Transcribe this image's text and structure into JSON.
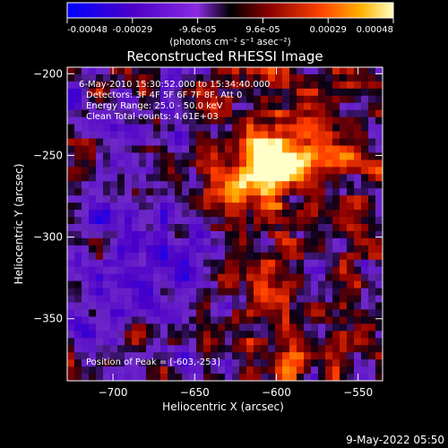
{
  "colorbar": {
    "tick_labels": [
      "-0.00048",
      "-0.00029",
      "-9.6e-05",
      "9.6e-05",
      "0.00029",
      "0.00048"
    ],
    "range": [
      -0.00048,
      0.00048
    ],
    "units_label": "(photons cm⁻² s⁻¹ asec⁻²)",
    "colors": [
      "#0000ff",
      "#5a00b0",
      "#8a2be2",
      "#000000",
      "#8b0000",
      "#ff4500",
      "#ffb000",
      "#ffffb0"
    ]
  },
  "chart_data": {
    "type": "heatmap",
    "title": "Reconstructed RHESSI Image",
    "xlabel": "Heliocentric X (arcsec)",
    "ylabel": "Heliocentric Y (arcsec)",
    "xlim": [
      -728,
      -535
    ],
    "ylim": [
      -388,
      -196
    ],
    "x_ticks": [
      -700,
      -650,
      -600,
      -550
    ],
    "y_ticks": [
      -200,
      -250,
      -300,
      -350
    ],
    "x_tick_labels": [
      "−700",
      "−650",
      "−600",
      "−550"
    ],
    "y_tick_labels": [
      "−200",
      "−250",
      "−300",
      "−350"
    ],
    "peak": {
      "x": -603,
      "y": -253
    },
    "info_lines": [
      "6-May-2010 15:30:52.000 to 15:34:40.000",
      "Detectors: 3F 4F 5F 6F 7F 8F, Att 0",
      "Energy Range: 25.0 - 50.0 keV",
      "Clean     Total counts: 4.61E+03"
    ],
    "peak_label": "Position of Peak = [-603,-253]"
  },
  "timestamp": "9-May-2022 05:50"
}
